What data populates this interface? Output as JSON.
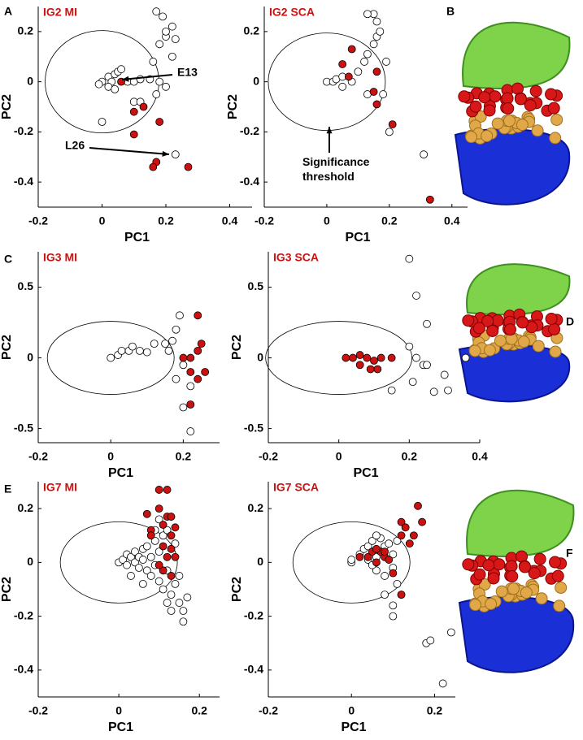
{
  "panel_labels": [
    "A",
    "B",
    "C",
    "D",
    "E",
    "F"
  ],
  "chart_data": [
    {
      "type": "scatter",
      "title": "IG2 MI",
      "xlabel": "PC1",
      "ylabel": "PC2",
      "annotations": [
        "E13",
        "L26"
      ],
      "xlim": [
        -0.2,
        0.47
      ],
      "xticks": [
        -0.2,
        0,
        0.2,
        0.4
      ],
      "ylim": [
        -0.5,
        0.3
      ],
      "yticks": [
        -0.4,
        -0.2,
        0,
        0.2
      ],
      "series": [
        {
          "color": "#ffffff",
          "x": [
            0,
            0.02,
            0.03,
            0.04,
            0.05,
            0.02,
            0.04,
            0.06,
            0.08,
            0.1,
            0.12,
            0.15,
            0.18,
            0.1,
            0.12,
            0.17,
            0.2,
            -0.01,
            0,
            0.18,
            0.2,
            0.22,
            0.23,
            0.22,
            0.19,
            0.17,
            0.2,
            0.16,
            0.23
          ],
          "values": [
            0,
            0.02,
            0,
            0.03,
            0.04,
            -0.02,
            -0.03,
            0.05,
            0,
            0,
            0.01,
            0.01,
            0,
            -0.08,
            -0.08,
            -0.05,
            -0.02,
            -0.01,
            -0.16,
            0.15,
            0.18,
            0.22,
            0.17,
            0.1,
            0.26,
            0.28,
            0.2,
            0.08,
            -0.29
          ]
        },
        {
          "color": "#cc1111",
          "x": [
            0.06,
            0.13,
            0.1,
            0.18,
            0.1,
            0.17,
            0.16,
            0.27
          ],
          "values": [
            0,
            -0.1,
            -0.12,
            -0.16,
            -0.21,
            -0.32,
            -0.34,
            -0.34
          ]
        }
      ]
    },
    {
      "type": "scatter",
      "title": "IG2 SCA",
      "xlabel": "PC1",
      "ylabel": "PC2",
      "annotations": [
        "Significance threshold"
      ],
      "xlim": [
        -0.2,
        0.45
      ],
      "xticks": [
        -0.2,
        0,
        0.2,
        0.4
      ],
      "ylim": [
        -0.5,
        0.3
      ],
      "yticks": [
        -0.4,
        -0.2,
        0,
        0.2
      ],
      "series": [
        {
          "color": "#ffffff",
          "x": [
            0,
            0.02,
            0.03,
            0.05,
            0.05,
            0.08,
            0.1,
            0.12,
            0.13,
            0.15,
            0.16,
            0.17,
            0.15,
            0.13,
            0.16,
            0.19,
            0.18,
            0.2,
            0.13,
            0.31
          ],
          "values": [
            0,
            0,
            0.01,
            0.02,
            -0.02,
            0,
            0.04,
            0.08,
            0.11,
            0.15,
            0.18,
            0.2,
            0.27,
            0.27,
            0.24,
            0.08,
            -0.05,
            -0.2,
            -0.05,
            -0.29
          ]
        },
        {
          "color": "#cc1111",
          "x": [
            0.05,
            0.08,
            0.07,
            0.16,
            0.15,
            0.16,
            0.21,
            0.33
          ],
          "values": [
            0.07,
            0.13,
            0.02,
            0.04,
            -0.04,
            -0.09,
            -0.17,
            -0.47
          ]
        }
      ]
    },
    {
      "type": "scatter",
      "title": "IG3 MI",
      "xlabel": "PC1",
      "ylabel": "PC2",
      "xlim": [
        -0.2,
        0.3
      ],
      "xticks": [
        -0.2,
        0,
        0.2
      ],
      "ylim": [
        -0.6,
        0.75
      ],
      "yticks": [
        -0.5,
        0,
        0.5
      ],
      "series": [
        {
          "color": "#ffffff",
          "x": [
            0,
            0.02,
            0.03,
            0.05,
            0.06,
            0.08,
            0.1,
            0.12,
            0.15,
            0.17,
            0.18,
            0.19,
            0.2,
            0.22,
            0.18,
            0.2,
            0.22,
            0.16
          ],
          "values": [
            0,
            0.02,
            0.05,
            0.05,
            0.08,
            0.05,
            0.04,
            0.1,
            0.1,
            0.12,
            0.2,
            0.3,
            -0.05,
            -0.2,
            -0.15,
            -0.35,
            -0.52,
            0.05
          ]
        },
        {
          "color": "#cc1111",
          "x": [
            0.2,
            0.22,
            0.24,
            0.25,
            0.24,
            0.22,
            0.26,
            0.24,
            0.22
          ],
          "values": [
            0,
            0,
            0.3,
            0.1,
            0.05,
            -0.1,
            -0.1,
            -0.15,
            -0.33
          ]
        }
      ]
    },
    {
      "type": "scatter",
      "title": "IG3 SCA",
      "xlabel": "PC1",
      "ylabel": "PC2",
      "xlim": [
        -0.2,
        0.4
      ],
      "xticks": [
        -0.2,
        0,
        0.2,
        0.4
      ],
      "ylim": [
        -0.6,
        0.75
      ],
      "yticks": [
        -0.5,
        0,
        0.5
      ],
      "series": [
        {
          "color": "#ffffff",
          "x": [
            0.2,
            0.22,
            0.25,
            0.2,
            0.22,
            0.24,
            0.25,
            0.21,
            0.15,
            0.27,
            0.3,
            0.31,
            0.36
          ],
          "values": [
            0.7,
            0.44,
            0.24,
            0.08,
            0,
            -0.05,
            -0.05,
            -0.17,
            -0.23,
            -0.24,
            -0.12,
            -0.23,
            0
          ]
        },
        {
          "color": "#cc1111",
          "x": [
            0.02,
            0.04,
            0.06,
            0.08,
            0.1,
            0.12,
            0.15,
            0.09,
            0.11,
            0.06
          ],
          "values": [
            0,
            0,
            0.02,
            0,
            -0.02,
            0,
            0,
            -0.08,
            -0.08,
            -0.05
          ]
        }
      ]
    },
    {
      "type": "scatter",
      "title": "IG7 MI",
      "xlabel": "PC1",
      "ylabel": "PC2",
      "xlim": [
        -0.2,
        0.25
      ],
      "xticks": [
        -0.2,
        0,
        0.2
      ],
      "ylim": [
        -0.5,
        0.3
      ],
      "yticks": [
        -0.4,
        -0.2,
        0,
        0.2
      ],
      "series": [
        {
          "color": "#ffffff",
          "x": [
            0,
            0.01,
            0.02,
            0.02,
            0.03,
            0.04,
            0.04,
            0.05,
            0.05,
            0.06,
            0.06,
            0.07,
            0.07,
            0.08,
            0.08,
            0.09,
            0.09,
            0.1,
            0.1,
            0.11,
            0.11,
            0.12,
            0.12,
            0.13,
            0.14,
            0.14,
            0.15,
            0.15,
            0.16,
            0.16,
            0.17,
            0.13,
            0.12,
            0.06,
            0.03,
            0.09,
            0.1
          ],
          "values": [
            0,
            0.01,
            0.03,
            -0.01,
            0.02,
            0.04,
            0,
            0.02,
            -0.02,
            0.05,
            0.01,
            -0.03,
            0.06,
            0.02,
            -0.05,
            0.08,
            -0.01,
            0.04,
            -0.07,
            0.1,
            -0.1,
            0.12,
            -0.03,
            -0.12,
            -0.08,
            0.07,
            -0.15,
            -0.05,
            -0.18,
            -0.22,
            -0.13,
            -0.18,
            -0.15,
            -0.08,
            -0.05,
            0.12,
            0.16
          ]
        },
        {
          "color": "#cc1111",
          "x": [
            0.07,
            0.08,
            0.08,
            0.1,
            0.1,
            0.11,
            0.12,
            0.12,
            0.13,
            0.13,
            0.13,
            0.14,
            0.14,
            0.12,
            0.11,
            0.1,
            0.13,
            0.11
          ],
          "values": [
            0.18,
            0.12,
            0.1,
            0.27,
            0.2,
            0.14,
            0.17,
            0.27,
            0.17,
            0.1,
            0.05,
            0.13,
            0.02,
            0.02,
            -0.03,
            -0.01,
            -0.05,
            0.06
          ]
        }
      ]
    },
    {
      "type": "scatter",
      "title": "IG7 SCA",
      "xlabel": "PC1",
      "ylabel": "PC2",
      "xlim": [
        -0.2,
        0.25
      ],
      "xticks": [
        -0.2,
        0,
        0.2
      ],
      "ylim": [
        -0.5,
        0.3
      ],
      "yticks": [
        -0.4,
        -0.2,
        0,
        0.2
      ],
      "series": [
        {
          "color": "#ffffff",
          "x": [
            0,
            0,
            0.02,
            0.03,
            0.04,
            0.04,
            0.05,
            0.06,
            0.06,
            0.07,
            0.08,
            0.08,
            0.09,
            0.1,
            0.1,
            0.11,
            0.11,
            0.08,
            0.1,
            0.1,
            0.12,
            0.18,
            0.19,
            0.22,
            0.24,
            0.06,
            0.05
          ],
          "values": [
            0,
            0.01,
            0.03,
            0.05,
            0.06,
            0.01,
            0.08,
            0.02,
            -0.03,
            0.09,
            0.06,
            -0.05,
            0.07,
            0.03,
            -0.02,
            0.08,
            -0.08,
            -0.12,
            -0.2,
            -0.16,
            -0.12,
            -0.3,
            -0.29,
            -0.45,
            -0.26,
            0.1,
            -0.01
          ]
        },
        {
          "color": "#cc1111",
          "x": [
            0.02,
            0.04,
            0.05,
            0.06,
            0.07,
            0.08,
            0.09,
            0.1,
            0.08,
            0.12,
            0.12,
            0.13,
            0.14,
            0.15,
            0.16,
            0.17,
            0.12,
            0.06
          ],
          "values": [
            0.02,
            0.02,
            0.04,
            0,
            0.04,
            0.02,
            0.01,
            -0.04,
            0.04,
            0.1,
            0.15,
            0.13,
            0.07,
            0.1,
            0.21,
            0.15,
            -0.12,
            0.05
          ]
        }
      ]
    }
  ]
}
